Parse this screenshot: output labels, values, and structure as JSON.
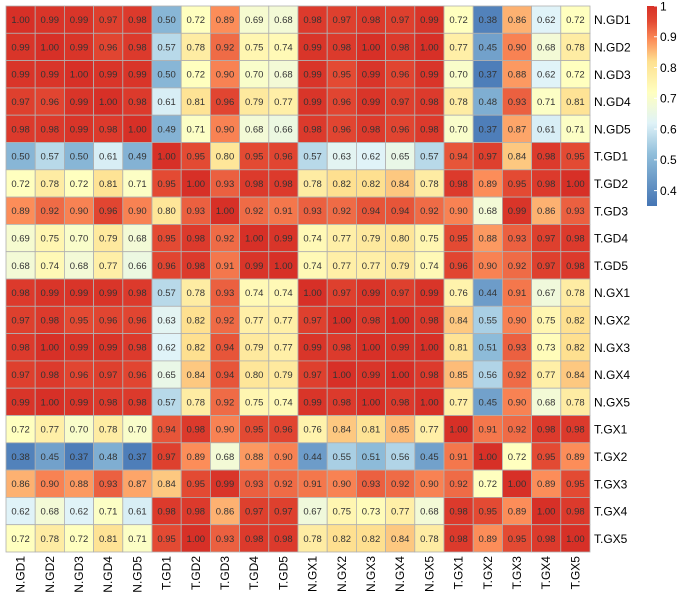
{
  "chart_data": {
    "type": "heatmap",
    "title": "",
    "xlabel": "",
    "ylabel": "",
    "rows": [
      "N.GD1",
      "N.GD2",
      "N.GD3",
      "N.GD4",
      "N.GD5",
      "T.GD1",
      "T.GD2",
      "T.GD3",
      "T.GD4",
      "T.GD5",
      "N.GX1",
      "N.GX2",
      "N.GX3",
      "N.GX4",
      "N.GX5",
      "T.GX1",
      "T.GX2",
      "T.GX3",
      "T.GX4",
      "T.GX5"
    ],
    "columns": [
      "N.GD1",
      "N.GD2",
      "N.GD3",
      "N.GD4",
      "N.GD5",
      "T.GD1",
      "T.GD2",
      "T.GD3",
      "T.GD4",
      "T.GD5",
      "N.GX1",
      "N.GX2",
      "N.GX3",
      "N.GX4",
      "N.GX5",
      "T.GX1",
      "T.GX2",
      "T.GX3",
      "T.GX4",
      "T.GX5"
    ],
    "values": [
      [
        "1.00",
        "0.99",
        "0.99",
        "0.97",
        "0.98",
        "0.50",
        "0.72",
        "0.89",
        "0.69",
        "0.68",
        "0.98",
        "0.97",
        "0.98",
        "0.97",
        "0.99",
        "0.72",
        "0.38",
        "0.86",
        "0.62",
        "0.72"
      ],
      [
        "0.99",
        "1.00",
        "0.99",
        "0.96",
        "0.98",
        "0.57",
        "0.78",
        "0.92",
        "0.75",
        "0.74",
        "0.99",
        "0.98",
        "1.00",
        "0.98",
        "1.00",
        "0.77",
        "0.45",
        "0.90",
        "0.68",
        "0.78"
      ],
      [
        "0.99",
        "0.99",
        "1.00",
        "0.99",
        "0.99",
        "0.50",
        "0.72",
        "0.90",
        "0.70",
        "0.68",
        "0.99",
        "0.95",
        "0.99",
        "0.96",
        "0.99",
        "0.70",
        "0.37",
        "0.88",
        "0.62",
        "0.72"
      ],
      [
        "0.97",
        "0.96",
        "0.99",
        "1.00",
        "0.98",
        "0.61",
        "0.81",
        "0.96",
        "0.79",
        "0.77",
        "0.99",
        "0.96",
        "0.99",
        "0.97",
        "0.98",
        "0.78",
        "0.48",
        "0.93",
        "0.71",
        "0.81"
      ],
      [
        "0.98",
        "0.98",
        "0.99",
        "0.98",
        "1.00",
        "0.49",
        "0.71",
        "0.90",
        "0.68",
        "0.66",
        "0.98",
        "0.96",
        "0.98",
        "0.96",
        "0.98",
        "0.70",
        "0.37",
        "0.87",
        "0.61",
        "0.71"
      ],
      [
        "0.50",
        "0.57",
        "0.50",
        "0.61",
        "0.49",
        "1.00",
        "0.95",
        "0.80",
        "0.95",
        "0.96",
        "0.57",
        "0.63",
        "0.62",
        "0.65",
        "0.57",
        "0.94",
        "0.97",
        "0.84",
        "0.98",
        "0.95"
      ],
      [
        "0.72",
        "0.78",
        "0.72",
        "0.81",
        "0.71",
        "0.95",
        "1.00",
        "0.93",
        "0.98",
        "0.98",
        "0.78",
        "0.82",
        "0.82",
        "0.84",
        "0.78",
        "0.98",
        "0.89",
        "0.95",
        "0.98",
        "1.00"
      ],
      [
        "0.89",
        "0.92",
        "0.90",
        "0.96",
        "0.90",
        "0.80",
        "0.93",
        "1.00",
        "0.92",
        "0.91",
        "0.93",
        "0.92",
        "0.94",
        "0.94",
        "0.92",
        "0.90",
        "0.68",
        "0.99",
        "0.86",
        "0.93"
      ],
      [
        "0.69",
        "0.75",
        "0.70",
        "0.79",
        "0.68",
        "0.95",
        "0.98",
        "0.92",
        "1.00",
        "0.99",
        "0.74",
        "0.77",
        "0.79",
        "0.80",
        "0.75",
        "0.95",
        "0.88",
        "0.93",
        "0.97",
        "0.98"
      ],
      [
        "0.68",
        "0.74",
        "0.68",
        "0.77",
        "0.66",
        "0.96",
        "0.98",
        "0.91",
        "0.99",
        "1.00",
        "0.74",
        "0.77",
        "0.77",
        "0.79",
        "0.74",
        "0.96",
        "0.90",
        "0.92",
        "0.97",
        "0.98"
      ],
      [
        "0.98",
        "0.99",
        "0.99",
        "0.99",
        "0.98",
        "0.57",
        "0.78",
        "0.93",
        "0.74",
        "0.74",
        "1.00",
        "0.97",
        "0.99",
        "0.97",
        "0.99",
        "0.76",
        "0.44",
        "0.91",
        "0.67",
        "0.78"
      ],
      [
        "0.97",
        "0.98",
        "0.95",
        "0.96",
        "0.96",
        "0.63",
        "0.82",
        "0.92",
        "0.77",
        "0.77",
        "0.97",
        "1.00",
        "0.98",
        "1.00",
        "0.98",
        "0.84",
        "0.55",
        "0.90",
        "0.75",
        "0.82"
      ],
      [
        "0.98",
        "1.00",
        "0.99",
        "0.99",
        "0.98",
        "0.62",
        "0.82",
        "0.94",
        "0.79",
        "0.77",
        "0.99",
        "0.98",
        "1.00",
        "0.99",
        "1.00",
        "0.81",
        "0.51",
        "0.93",
        "0.73",
        "0.82"
      ],
      [
        "0.97",
        "0.98",
        "0.96",
        "0.97",
        "0.96",
        "0.65",
        "0.84",
        "0.94",
        "0.80",
        "0.79",
        "0.97",
        "1.00",
        "0.99",
        "1.00",
        "0.98",
        "0.85",
        "0.56",
        "0.92",
        "0.77",
        "0.84"
      ],
      [
        "0.99",
        "1.00",
        "0.99",
        "0.98",
        "0.98",
        "0.57",
        "0.78",
        "0.92",
        "0.75",
        "0.74",
        "0.99",
        "0.98",
        "1.00",
        "0.98",
        "1.00",
        "0.77",
        "0.45",
        "0.90",
        "0.68",
        "0.78"
      ],
      [
        "0.72",
        "0.77",
        "0.70",
        "0.78",
        "0.70",
        "0.94",
        "0.98",
        "0.90",
        "0.95",
        "0.96",
        "0.76",
        "0.84",
        "0.81",
        "0.85",
        "0.77",
        "1.00",
        "0.91",
        "0.92",
        "0.98",
        "0.98"
      ],
      [
        "0.38",
        "0.45",
        "0.37",
        "0.48",
        "0.37",
        "0.97",
        "0.89",
        "0.68",
        "0.88",
        "0.90",
        "0.44",
        "0.55",
        "0.51",
        "0.56",
        "0.45",
        "0.91",
        "1.00",
        "0.72",
        "0.95",
        "0.89"
      ],
      [
        "0.86",
        "0.90",
        "0.88",
        "0.93",
        "0.87",
        "0.84",
        "0.95",
        "0.99",
        "0.93",
        "0.92",
        "0.91",
        "0.90",
        "0.93",
        "0.92",
        "0.90",
        "0.92",
        "0.72",
        "1.00",
        "0.89",
        "0.95"
      ],
      [
        "0.62",
        "0.68",
        "0.62",
        "0.71",
        "0.61",
        "0.98",
        "0.98",
        "0.86",
        "0.97",
        "0.97",
        "0.67",
        "0.75",
        "0.73",
        "0.77",
        "0.68",
        "0.98",
        "0.95",
        "0.89",
        "1.00",
        "0.98"
      ],
      [
        "0.72",
        "0.78",
        "0.72",
        "0.81",
        "0.71",
        "0.95",
        "1.00",
        "0.93",
        "0.98",
        "0.98",
        "0.78",
        "0.82",
        "0.82",
        "0.84",
        "0.78",
        "0.98",
        "0.89",
        "0.95",
        "0.98",
        "1.00"
      ]
    ],
    "color_scale": {
      "min": 0.35,
      "max": 1.0,
      "stops": [
        {
          "value": 0.35,
          "color": "#4575b4"
        },
        {
          "value": 0.52,
          "color": "#91bfdb"
        },
        {
          "value": 0.62,
          "color": "#e0f3f8"
        },
        {
          "value": 0.72,
          "color": "#ffffbf"
        },
        {
          "value": 0.82,
          "color": "#fee090"
        },
        {
          "value": 0.89,
          "color": "#fc8d59"
        },
        {
          "value": 0.95,
          "color": "#e34a33"
        },
        {
          "value": 1.0,
          "color": "#d73027"
        }
      ]
    },
    "legend": {
      "position": "right",
      "ticks": [
        "1",
        "0.9",
        "0.8",
        "0.7",
        "0.6",
        "0.5",
        "0.4"
      ]
    },
    "grid": true,
    "cell_border_color": "#b0b0b0",
    "text_color": "#333333"
  }
}
